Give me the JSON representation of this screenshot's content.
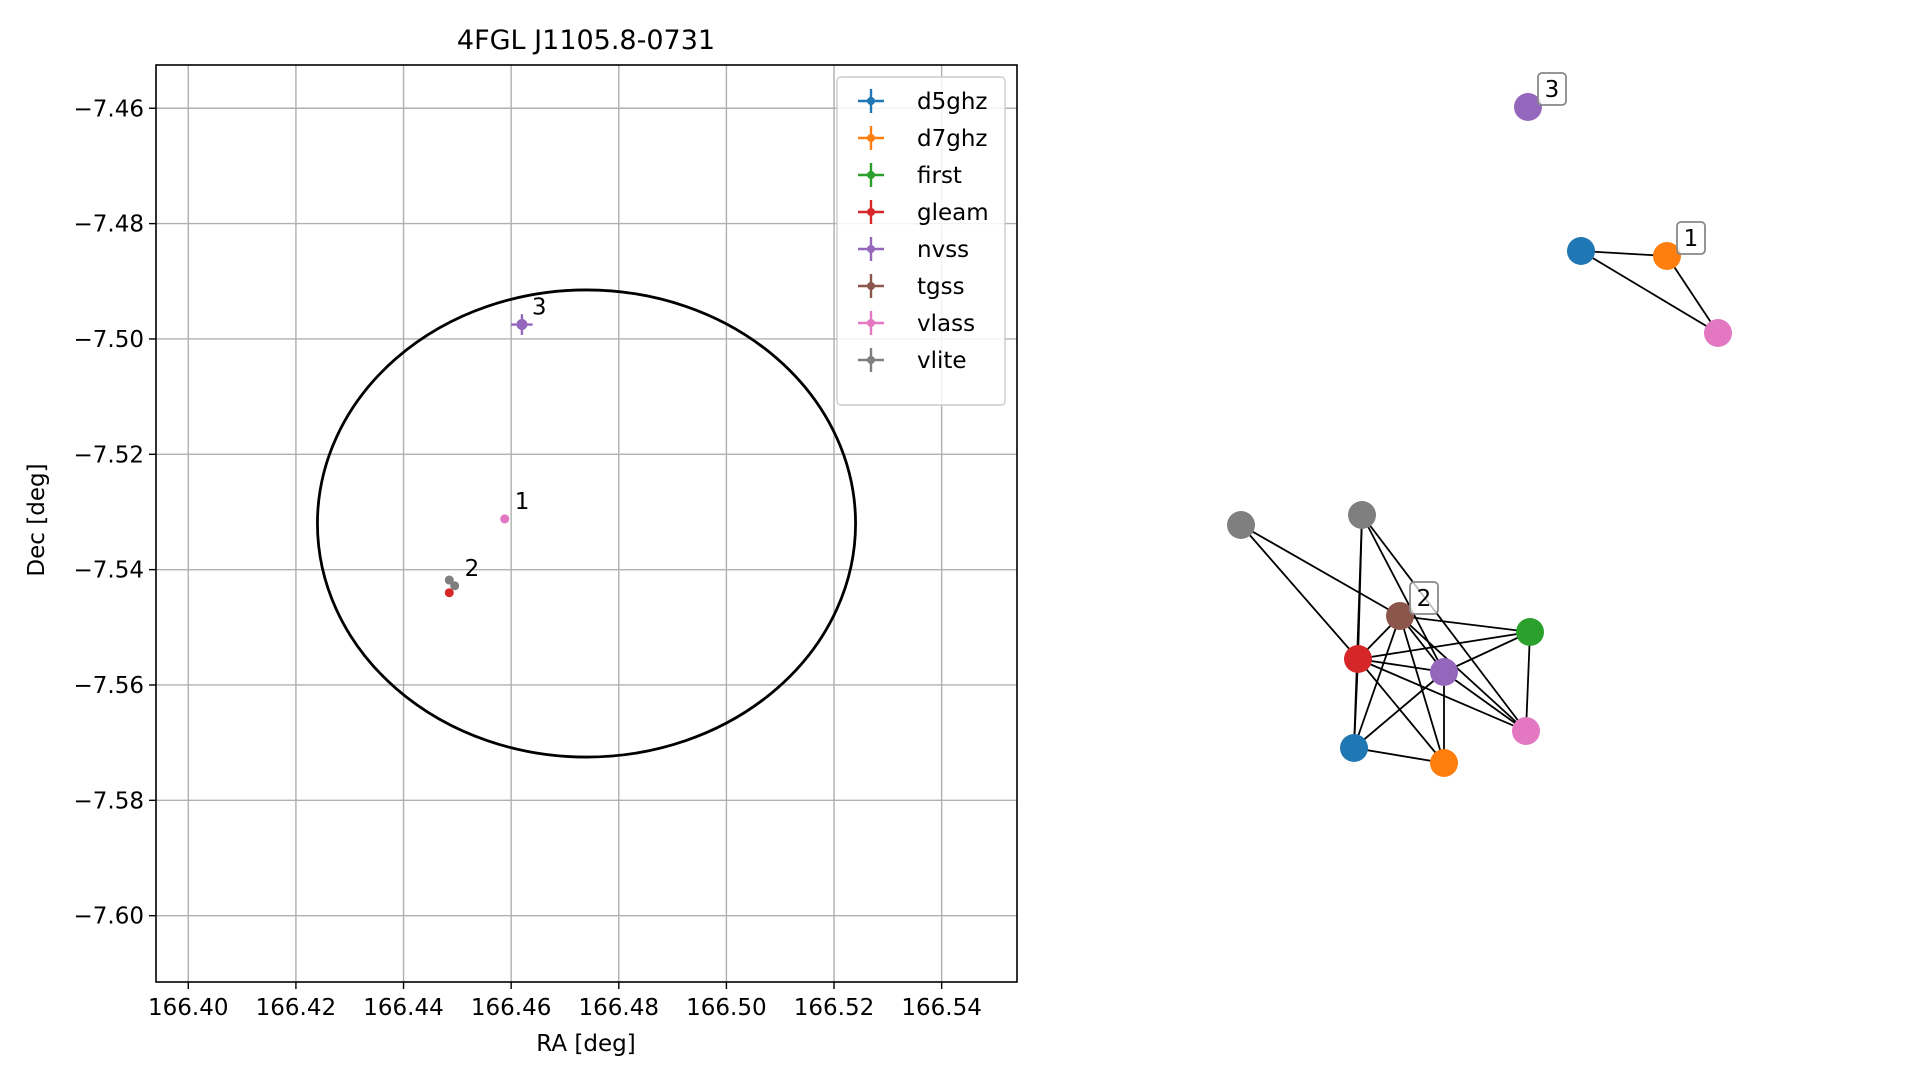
{
  "chart_data": [
    {
      "type": "scatter",
      "title": "4FGL J1105.8-0731",
      "xlabel": "RA [deg]",
      "ylabel": "Dec [deg]",
      "xlim": [
        166.394,
        166.554
      ],
      "ylim": [
        -7.6115,
        -7.4525
      ],
      "xticks": [
        "166.40",
        "166.42",
        "166.44",
        "166.46",
        "166.48",
        "166.50",
        "166.52",
        "166.54"
      ],
      "xtick_values": [
        166.4,
        166.42,
        166.44,
        166.46,
        166.48,
        166.5,
        166.52,
        166.54
      ],
      "yticks": [
        "−7.46",
        "−7.48",
        "−7.50",
        "−7.52",
        "−7.54",
        "−7.56",
        "−7.58",
        "−7.60"
      ],
      "ytick_values": [
        -7.46,
        -7.48,
        -7.5,
        -7.52,
        -7.54,
        -7.56,
        -7.58,
        -7.6
      ],
      "grid": true,
      "legend_position": "top-right",
      "ellipse": {
        "center": [
          166.474,
          -7.532
        ],
        "semi_axes": [
          0.05,
          0.0405
        ],
        "color": "#000000"
      },
      "series": [
        {
          "name": "d5ghz",
          "color": "#1f77b4",
          "points": []
        },
        {
          "name": "d7ghz",
          "color": "#ff7f0e",
          "points": []
        },
        {
          "name": "first",
          "color": "#2ca02c",
          "points": []
        },
        {
          "name": "gleam",
          "color": "#d62728",
          "points": [
            [
              166.4485,
              -7.544
            ]
          ]
        },
        {
          "name": "nvss",
          "color": "#9467bd",
          "points": [
            [
              166.462,
              -7.4975
            ]
          ],
          "xerr": 0.002,
          "yerr": 0.0018
        },
        {
          "name": "tgss",
          "color": "#8c564b",
          "points": []
        },
        {
          "name": "vlass",
          "color": "#e377c2",
          "points": [
            [
              166.4588,
              -7.5312
            ]
          ]
        },
        {
          "name": "vlite",
          "color": "#7f7f7f",
          "points": [
            [
              166.4485,
              -7.5418
            ],
            [
              166.4495,
              -7.5428
            ]
          ]
        }
      ],
      "annotations": [
        {
          "text": "3",
          "x": 166.462,
          "y": -7.4975
        },
        {
          "text": "1",
          "x": 166.4588,
          "y": -7.5312
        },
        {
          "text": "2",
          "x": 166.4495,
          "y": -7.5428
        }
      ]
    },
    {
      "type": "network",
      "nodes": [
        {
          "id": "n3",
          "color": "#9467bd"
        },
        {
          "id": "a1",
          "color": "#1f77b4"
        },
        {
          "id": "a2",
          "color": "#ff7f0e"
        },
        {
          "id": "a3",
          "color": "#e377c2"
        },
        {
          "id": "c1",
          "color": "#7f7f7f"
        },
        {
          "id": "c2",
          "color": "#7f7f7f"
        },
        {
          "id": "c3",
          "color": "#8c564b"
        },
        {
          "id": "c4",
          "color": "#2ca02c"
        },
        {
          "id": "c5",
          "color": "#d62728"
        },
        {
          "id": "c6",
          "color": "#9467bd"
        },
        {
          "id": "c7",
          "color": "#e377c2"
        },
        {
          "id": "c8",
          "color": "#1f77b4"
        },
        {
          "id": "c9",
          "color": "#ff7f0e"
        }
      ],
      "edges": [
        [
          "a1",
          "a2"
        ],
        [
          "a1",
          "a3"
        ],
        [
          "a2",
          "a3"
        ],
        [
          "c1",
          "c5"
        ],
        [
          "c1",
          "c3"
        ],
        [
          "c2",
          "c5"
        ],
        [
          "c2",
          "c8"
        ],
        [
          "c2",
          "c7"
        ],
        [
          "c2",
          "c6"
        ],
        [
          "c3",
          "c5"
        ],
        [
          "c3",
          "c4"
        ],
        [
          "c3",
          "c9"
        ],
        [
          "c3",
          "c7"
        ],
        [
          "c3",
          "c8"
        ],
        [
          "c3",
          "c6"
        ],
        [
          "c5",
          "c4"
        ],
        [
          "c5",
          "c8"
        ],
        [
          "c5",
          "c9"
        ],
        [
          "c5",
          "c6"
        ],
        [
          "c5",
          "c7"
        ],
        [
          "c6",
          "c4"
        ],
        [
          "c6",
          "c8"
        ],
        [
          "c6",
          "c9"
        ],
        [
          "c6",
          "c7"
        ],
        [
          "c4",
          "c7"
        ],
        [
          "c8",
          "c9"
        ]
      ],
      "labels": [
        {
          "text": "3",
          "node": "n3"
        },
        {
          "text": "1",
          "node": "a2"
        },
        {
          "text": "2",
          "node": "c3"
        }
      ]
    }
  ]
}
